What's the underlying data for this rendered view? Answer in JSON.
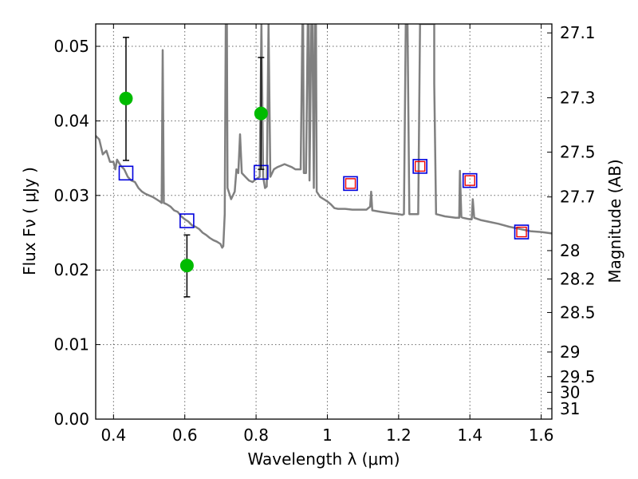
{
  "colors": {
    "spectrum": "#808080",
    "observed_point": "#00bb00",
    "model_box": "#0000dd",
    "model_box_inner": "#ee0000",
    "errorbar": "#000000",
    "axes": "#000000"
  },
  "chart_data": {
    "type": "scatter",
    "title": "",
    "xlabel": "Wavelength  λ (μm)",
    "ylabel": "Flux  Fν ( μJy )",
    "y2label": "Magnitude (AB)",
    "xlim": [
      0.35,
      1.63
    ],
    "ylim": [
      0.0,
      0.053
    ],
    "grid": true,
    "x_ticks": [
      0.4,
      0.6,
      0.8,
      1.0,
      1.2,
      1.4,
      1.6
    ],
    "x_tick_labels": [
      "0.4",
      "0.6",
      "0.8",
      "1",
      "1.2",
      "1.4",
      "1.6"
    ],
    "y_ticks": [
      0.0,
      0.01,
      0.02,
      0.03,
      0.04,
      0.05
    ],
    "y_tick_labels": [
      "0.00",
      "0.01",
      "0.02",
      "0.03",
      "0.04",
      "0.05"
    ],
    "y2_ticks": [
      {
        "label": "27.1",
        "flux": 0.0518
      },
      {
        "label": "27.3",
        "flux": 0.0431
      },
      {
        "label": "27.5",
        "flux": 0.0358
      },
      {
        "label": "27.7",
        "flux": 0.0298
      },
      {
        "label": "28",
        "flux": 0.0226
      },
      {
        "label": "28.2",
        "flux": 0.0188
      },
      {
        "label": "28.5",
        "flux": 0.0143
      },
      {
        "label": "29",
        "flux": 0.009
      },
      {
        "label": "29.5",
        "flux": 0.0057
      },
      {
        "label": "30",
        "flux": 0.0036
      },
      {
        "label": "31",
        "flux": 0.0014
      }
    ],
    "series": [
      {
        "type": "line",
        "points": [
          [
            0.35,
            0.038
          ],
          [
            0.36,
            0.0375
          ],
          [
            0.37,
            0.0355
          ],
          [
            0.38,
            0.036
          ],
          [
            0.39,
            0.0345
          ],
          [
            0.4,
            0.0345
          ],
          [
            0.405,
            0.0335
          ],
          [
            0.41,
            0.0348
          ],
          [
            0.42,
            0.034
          ],
          [
            0.43,
            0.0335
          ],
          [
            0.44,
            0.0325
          ],
          [
            0.45,
            0.032
          ],
          [
            0.46,
            0.0318
          ],
          [
            0.47,
            0.031
          ],
          [
            0.48,
            0.0305
          ],
          [
            0.49,
            0.0302
          ],
          [
            0.5,
            0.03
          ],
          [
            0.51,
            0.0298
          ],
          [
            0.52,
            0.0295
          ],
          [
            0.53,
            0.0292
          ],
          [
            0.535,
            0.029
          ],
          [
            0.538,
            0.0495
          ],
          [
            0.541,
            0.029
          ],
          [
            0.55,
            0.0288
          ],
          [
            0.56,
            0.0285
          ],
          [
            0.57,
            0.028
          ],
          [
            0.58,
            0.0278
          ],
          [
            0.59,
            0.0272
          ],
          [
            0.6,
            0.0268
          ],
          [
            0.61,
            0.0265
          ],
          [
            0.62,
            0.026
          ],
          [
            0.63,
            0.0258
          ],
          [
            0.64,
            0.0255
          ],
          [
            0.65,
            0.025
          ],
          [
            0.66,
            0.0247
          ],
          [
            0.67,
            0.0243
          ],
          [
            0.68,
            0.024
          ],
          [
            0.69,
            0.0238
          ],
          [
            0.7,
            0.0235
          ],
          [
            0.705,
            0.023
          ],
          [
            0.708,
            0.0232
          ],
          [
            0.712,
            0.0275
          ],
          [
            0.715,
            0.053
          ],
          [
            0.718,
            0.053
          ],
          [
            0.72,
            0.031
          ],
          [
            0.73,
            0.0295
          ],
          [
            0.74,
            0.0305
          ],
          [
            0.745,
            0.0335
          ],
          [
            0.75,
            0.033
          ],
          [
            0.755,
            0.0382
          ],
          [
            0.76,
            0.033
          ],
          [
            0.77,
            0.0325
          ],
          [
            0.78,
            0.032
          ],
          [
            0.79,
            0.0318
          ],
          [
            0.8,
            0.0322
          ],
          [
            0.81,
            0.0325
          ],
          [
            0.815,
            0.053
          ],
          [
            0.82,
            0.0325
          ],
          [
            0.825,
            0.031
          ],
          [
            0.83,
            0.0312
          ],
          [
            0.835,
            0.053
          ],
          [
            0.84,
            0.0325
          ],
          [
            0.85,
            0.0335
          ],
          [
            0.86,
            0.0338
          ],
          [
            0.87,
            0.034
          ],
          [
            0.88,
            0.0342
          ],
          [
            0.89,
            0.034
          ],
          [
            0.9,
            0.0338
          ],
          [
            0.91,
            0.0335
          ],
          [
            0.92,
            0.0335
          ],
          [
            0.925,
            0.0335
          ],
          [
            0.93,
            0.053
          ],
          [
            0.932,
            0.053
          ],
          [
            0.934,
            0.033
          ],
          [
            0.94,
            0.033
          ],
          [
            0.945,
            0.053
          ],
          [
            0.948,
            0.053
          ],
          [
            0.95,
            0.032
          ],
          [
            0.955,
            0.053
          ],
          [
            0.958,
            0.053
          ],
          [
            0.962,
            0.031
          ],
          [
            0.965,
            0.053
          ],
          [
            0.968,
            0.053
          ],
          [
            0.97,
            0.0305
          ],
          [
            0.98,
            0.0298
          ],
          [
            0.99,
            0.0295
          ],
          [
            1.0,
            0.0292
          ],
          [
            1.01,
            0.0288
          ],
          [
            1.02,
            0.0283
          ],
          [
            1.03,
            0.0282
          ],
          [
            1.05,
            0.0282
          ],
          [
            1.07,
            0.0281
          ],
          [
            1.09,
            0.0281
          ],
          [
            1.11,
            0.0281
          ],
          [
            1.12,
            0.0285
          ],
          [
            1.123,
            0.0305
          ],
          [
            1.126,
            0.028
          ],
          [
            1.15,
            0.0278
          ],
          [
            1.18,
            0.0276
          ],
          [
            1.2,
            0.0275
          ],
          [
            1.21,
            0.0274
          ],
          [
            1.215,
            0.0275
          ],
          [
            1.22,
            0.053
          ],
          [
            1.225,
            0.053
          ],
          [
            1.23,
            0.0275
          ],
          [
            1.24,
            0.0275
          ],
          [
            1.25,
            0.0275
          ],
          [
            1.255,
            0.0275
          ],
          [
            1.26,
            0.053
          ],
          [
            1.3,
            0.053
          ],
          [
            1.3,
            0.045
          ],
          [
            1.305,
            0.0275
          ],
          [
            1.33,
            0.0272
          ],
          [
            1.36,
            0.027
          ],
          [
            1.37,
            0.027
          ],
          [
            1.372,
            0.0333
          ],
          [
            1.376,
            0.0271
          ],
          [
            1.38,
            0.027
          ],
          [
            1.4,
            0.0268
          ],
          [
            1.405,
            0.0268
          ],
          [
            1.408,
            0.0295
          ],
          [
            1.412,
            0.027
          ],
          [
            1.43,
            0.0267
          ],
          [
            1.45,
            0.0265
          ],
          [
            1.48,
            0.0262
          ],
          [
            1.51,
            0.0258
          ],
          [
            1.54,
            0.0255
          ],
          [
            1.57,
            0.0252
          ],
          [
            1.6,
            0.0251
          ],
          [
            1.63,
            0.0249
          ]
        ]
      },
      {
        "type": "errorbar",
        "points": [
          {
            "x": 0.435,
            "y": 0.043,
            "yerr_low": 0.0347,
            "yerr_high": 0.0512
          },
          {
            "x": 0.606,
            "y": 0.0206,
            "yerr_low": 0.0164,
            "yerr_high": 0.0247
          },
          {
            "x": 0.814,
            "y": 0.041,
            "yerr_low": 0.0335,
            "yerr_high": 0.0485
          }
        ]
      },
      {
        "type": "model-boxes",
        "points": [
          {
            "x": 0.435,
            "y": 0.033,
            "inner": false
          },
          {
            "x": 0.606,
            "y": 0.0266,
            "inner": false
          },
          {
            "x": 0.814,
            "y": 0.0331,
            "inner": false
          },
          {
            "x": 1.065,
            "y": 0.0316,
            "inner": true
          },
          {
            "x": 1.26,
            "y": 0.0339,
            "inner": true
          },
          {
            "x": 1.4,
            "y": 0.032,
            "inner": true
          },
          {
            "x": 1.545,
            "y": 0.0251,
            "inner": true
          }
        ]
      }
    ]
  }
}
